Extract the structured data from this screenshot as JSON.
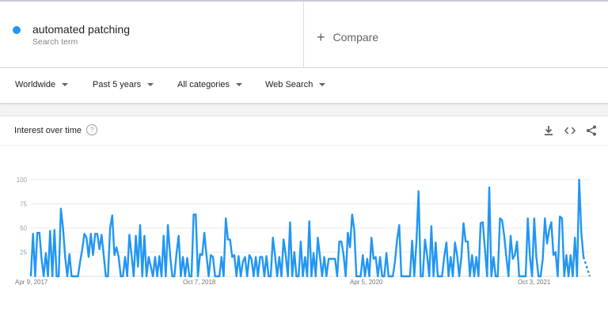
{
  "term": {
    "name": "automated patching",
    "subtitle": "Search term",
    "color": "#2196f3"
  },
  "compare": {
    "label": "Compare"
  },
  "filters": {
    "location": "Worldwide",
    "time": "Past 5 years",
    "category": "All categories",
    "property": "Web Search"
  },
  "card": {
    "title": "Interest over time",
    "icons": [
      "download-icon",
      "embed-icon",
      "share-icon"
    ]
  },
  "chart_data": {
    "type": "line",
    "yticks": [
      25,
      50,
      75,
      100
    ],
    "ylim": [
      0,
      100
    ],
    "xtick_labels": [
      "Apr 9, 2017",
      "Oct 7, 2018",
      "Apr 5, 2020",
      "Oct 3, 2021"
    ],
    "grid": true,
    "series": [
      {
        "color": "#2196f3",
        "values": [
          0,
          44,
          0,
          45,
          45,
          18,
          0,
          24,
          0,
          47,
          0,
          48,
          0,
          0,
          70,
          50,
          20,
          0,
          23,
          0,
          0,
          0,
          0,
          15,
          28,
          44,
          40,
          20,
          44,
          22,
          44,
          44,
          28,
          43,
          22,
          0,
          0,
          50,
          63,
          22,
          30,
          20,
          0,
          0,
          20,
          0,
          43,
          22,
          0,
          42,
          10,
          53,
          0,
          42,
          0,
          20,
          10,
          0,
          20,
          0,
          21,
          0,
          42,
          0,
          53,
          22,
          0,
          0,
          24,
          42,
          0,
          20,
          0,
          19,
          0,
          0,
          64,
          64,
          0,
          23,
          22,
          45,
          22,
          0,
          22,
          20,
          0,
          0,
          0,
          20,
          0,
          60,
          38,
          38,
          20,
          22,
          0,
          21,
          0,
          15,
          20,
          0,
          22,
          18,
          0,
          20,
          0,
          20,
          20,
          0,
          21,
          0,
          0,
          40,
          22,
          0,
          20,
          0,
          38,
          22,
          0,
          56,
          0,
          25,
          0,
          0,
          36,
          0,
          20,
          0,
          57,
          0,
          24,
          0,
          40,
          20,
          0,
          20,
          0,
          18,
          18,
          18,
          18,
          0,
          36,
          36,
          22,
          0,
          45,
          30,
          64,
          48,
          0,
          0,
          0,
          22,
          0,
          18,
          0,
          40,
          18,
          20,
          0,
          20,
          0,
          0,
          24,
          0,
          0,
          0,
          15,
          38,
          53,
          0,
          0,
          0,
          0,
          0,
          37,
          0,
          35,
          88,
          0,
          0,
          38,
          22,
          0,
          52,
          0,
          35,
          0,
          0,
          0,
          20,
          35,
          0,
          20,
          0,
          35,
          22,
          0,
          20,
          55,
          36,
          36,
          0,
          22,
          0,
          20,
          0,
          55,
          56,
          28,
          0,
          92,
          0,
          20,
          0,
          0,
          60,
          58,
          42,
          20,
          0,
          42,
          18,
          22,
          36,
          0,
          0,
          0,
          0,
          60,
          20,
          0,
          60,
          20,
          0,
          0,
          18,
          60,
          34,
          48,
          56,
          22,
          25,
          0,
          62,
          60,
          0,
          22,
          0,
          22,
          0,
          40,
          0,
          100,
          45,
          20,
          0
        ]
      }
    ]
  }
}
